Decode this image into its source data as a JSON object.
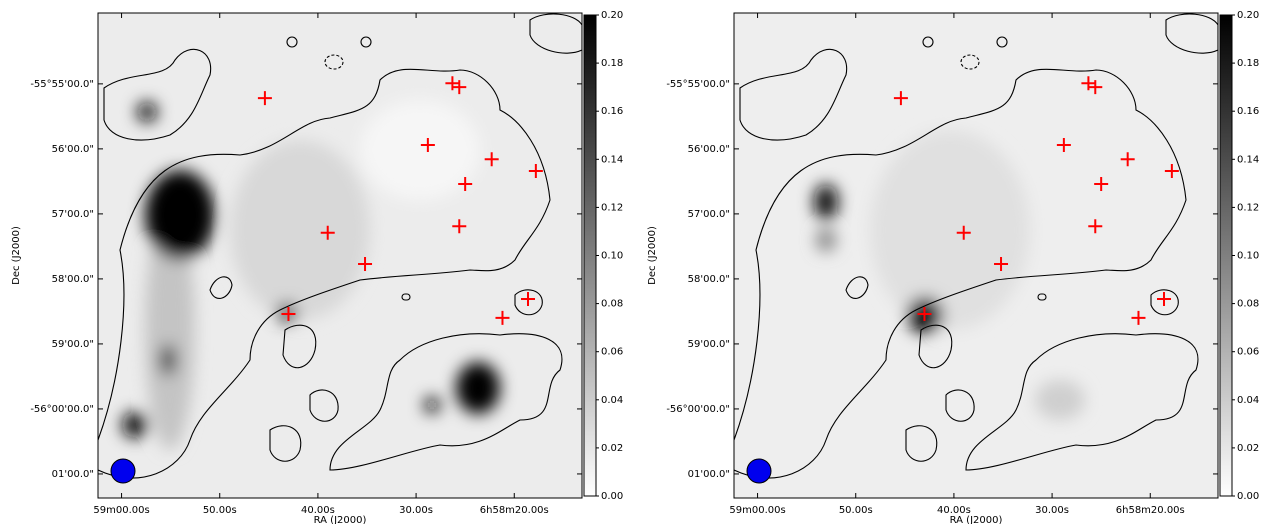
{
  "chart_data": [
    {
      "type": "scatter",
      "x_label": "RA (J2000)",
      "y_label": "Dec (J2000)",
      "x": [
        45.4,
        26.3,
        25.6,
        28.8,
        22.3,
        17.8,
        25.0,
        25.6,
        39.0,
        35.2,
        18.6,
        43.0,
        21.2
      ],
      "values": [
        -55.22,
        -54.99,
        -55.05,
        -55.94,
        -56.16,
        -56.34,
        -56.54,
        -57.19,
        -57.29,
        -57.77,
        -58.31,
        -58.54,
        -58.6
      ],
      "color": "#ff0000",
      "xlim": [
        62.4,
        13.1
      ],
      "xticks": [
        {
          "value": 60,
          "label": "59m00.00s"
        },
        {
          "value": 50,
          "label": "50.00s"
        },
        {
          "value": 40,
          "label": "40.00s"
        },
        {
          "value": 30,
          "label": "30.00s"
        },
        {
          "value": 20,
          "label": "6h58m20.00s"
        }
      ],
      "ylim": [
        -61.37,
        -53.91
      ],
      "yticks": [
        {
          "value": -55,
          "label": "-55°55'00.0\""
        },
        {
          "value": -56,
          "label": "56'00.0\""
        },
        {
          "value": -57,
          "label": "57'00.0\""
        },
        {
          "value": -58,
          "label": "58'00.0\""
        },
        {
          "value": -59,
          "label": "59'00.0\""
        },
        {
          "value": -60,
          "label": "-56°00'00.0\""
        },
        {
          "value": -61,
          "label": "01'00.0\""
        }
      ],
      "clim": [
        0,
        0.2
      ],
      "cticks": [
        {
          "value": 0,
          "label": "0.00"
        },
        {
          "value": 0.02,
          "label": "0.02"
        },
        {
          "value": 0.04,
          "label": "0.04"
        },
        {
          "value": 0.06,
          "label": "0.06"
        },
        {
          "value": 0.08,
          "label": "0.08"
        },
        {
          "value": 0.1,
          "label": "0.10"
        },
        {
          "value": 0.12,
          "label": "0.12"
        },
        {
          "value": 0.14,
          "label": "0.14"
        },
        {
          "value": 0.16,
          "label": "0.16"
        },
        {
          "value": 0.18,
          "label": "0.18"
        },
        {
          "value": 0.2,
          "label": "0.20"
        }
      ]
    },
    {
      "type": "scatter",
      "x_label": "RA (J2000)",
      "y_label": "Dec (J2000)",
      "x": [
        45.4,
        26.3,
        25.6,
        28.8,
        22.3,
        17.8,
        25.0,
        25.6,
        39.0,
        35.2,
        18.6,
        43.0,
        21.2
      ],
      "values": [
        -55.22,
        -54.99,
        -55.05,
        -55.94,
        -56.16,
        -56.34,
        -56.54,
        -57.19,
        -57.29,
        -57.77,
        -58.31,
        -58.54,
        -58.6
      ],
      "color": "#ff0000",
      "xlim": [
        62.4,
        13.1
      ],
      "xticks": [
        {
          "value": 60,
          "label": "59m00.00s"
        },
        {
          "value": 50,
          "label": "50.00s"
        },
        {
          "value": 40,
          "label": "40.00s"
        },
        {
          "value": 30,
          "label": "30.00s"
        },
        {
          "value": 20,
          "label": "6h58m20.00s"
        }
      ],
      "ylim": [
        -61.37,
        -53.91
      ],
      "yticks": [
        {
          "value": -55,
          "label": "-55°55'00.0\""
        },
        {
          "value": -56,
          "label": "56'00.0\""
        },
        {
          "value": -57,
          "label": "57'00.0\""
        },
        {
          "value": -58,
          "label": "58'00.0\""
        },
        {
          "value": -59,
          "label": "59'00.0\""
        },
        {
          "value": -60,
          "label": "-56°00'00.0\""
        },
        {
          "value": -61,
          "label": "01'00.0\""
        }
      ],
      "clim": [
        0,
        0.2
      ],
      "cticks": [
        {
          "value": 0,
          "label": "0.00"
        },
        {
          "value": 0.02,
          "label": "0.02"
        },
        {
          "value": 0.04,
          "label": "0.04"
        },
        {
          "value": 0.06,
          "label": "0.06"
        },
        {
          "value": 0.08,
          "label": "0.08"
        },
        {
          "value": 0.1,
          "label": "0.10"
        },
        {
          "value": 0.12,
          "label": "0.12"
        },
        {
          "value": 0.14,
          "label": "0.14"
        },
        {
          "value": 0.16,
          "label": "0.16"
        },
        {
          "value": 0.18,
          "label": "0.18"
        },
        {
          "value": 0.2,
          "label": "0.20"
        }
      ]
    }
  ]
}
